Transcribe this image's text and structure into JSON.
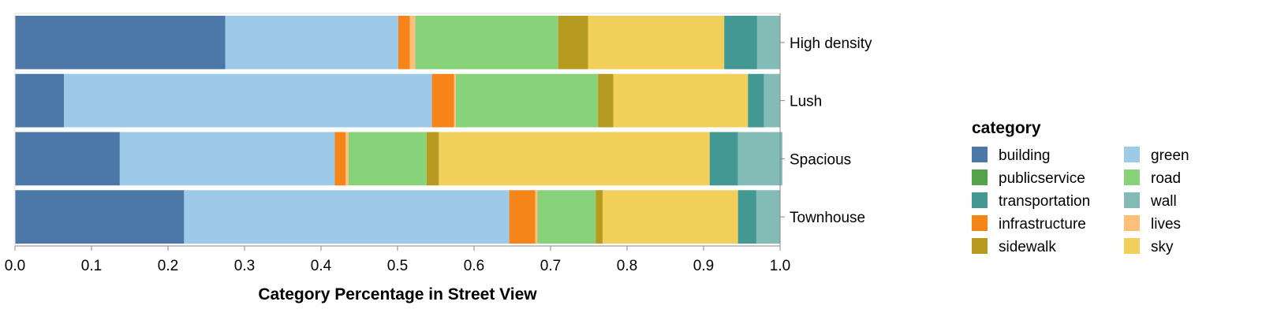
{
  "chart_data": {
    "type": "bar",
    "orientation": "horizontal",
    "stacked": true,
    "xlabel": "Category Percentage in Street View",
    "ylabel": "",
    "xlim": [
      0,
      1
    ],
    "x_ticks": [
      "0.0",
      "0.1",
      "0.2",
      "0.3",
      "0.4",
      "0.5",
      "0.6",
      "0.7",
      "0.8",
      "0.9",
      "1.0"
    ],
    "grid": false,
    "categories": [
      "High density",
      "Lush",
      "Spacious",
      "Townhouse"
    ],
    "series": [
      {
        "name": "building",
        "color": "#4c78a8",
        "values": [
          0.275,
          0.064,
          0.137,
          0.221
        ]
      },
      {
        "name": "green",
        "color": "#9ecae9",
        "values": [
          0.226,
          0.481,
          0.281,
          0.425
        ]
      },
      {
        "name": "publicservice",
        "color": "#54a24b",
        "values": [
          0.0,
          0.0,
          0.0,
          0.0
        ]
      },
      {
        "name": "infrastructure",
        "color": "#f58518",
        "values": [
          0.015,
          0.029,
          0.014,
          0.034
        ]
      },
      {
        "name": "lives",
        "color": "#ffbf79",
        "values": [
          0.007,
          0.002,
          0.004,
          0.003
        ]
      },
      {
        "name": "road",
        "color": "#88d27a",
        "values": [
          0.187,
          0.186,
          0.102,
          0.076
        ]
      },
      {
        "name": "sidewalk",
        "color": "#b79a20",
        "values": [
          0.039,
          0.02,
          0.016,
          0.009
        ]
      },
      {
        "name": "sky",
        "color": "#f2cf5b",
        "values": [
          0.178,
          0.176,
          0.354,
          0.177
        ]
      },
      {
        "name": "transportation",
        "color": "#439894",
        "values": [
          0.043,
          0.021,
          0.037,
          0.024
        ]
      },
      {
        "name": "wall",
        "color": "#83bcb6",
        "values": [
          0.03,
          0.021,
          0.058,
          0.031
        ]
      }
    ]
  },
  "legend": {
    "title": "category",
    "position": "right",
    "items": [
      {
        "name": "building",
        "color": "#4c78a8"
      },
      {
        "name": "green",
        "color": "#9ecae9"
      },
      {
        "name": "publicservice",
        "color": "#54a24b"
      },
      {
        "name": "road",
        "color": "#88d27a"
      },
      {
        "name": "transportation",
        "color": "#439894"
      },
      {
        "name": "wall",
        "color": "#83bcb6"
      },
      {
        "name": "infrastructure",
        "color": "#f58518"
      },
      {
        "name": "lives",
        "color": "#ffbf79"
      },
      {
        "name": "sidewalk",
        "color": "#b79a20"
      },
      {
        "name": "sky",
        "color": "#f2cf5b"
      }
    ]
  }
}
